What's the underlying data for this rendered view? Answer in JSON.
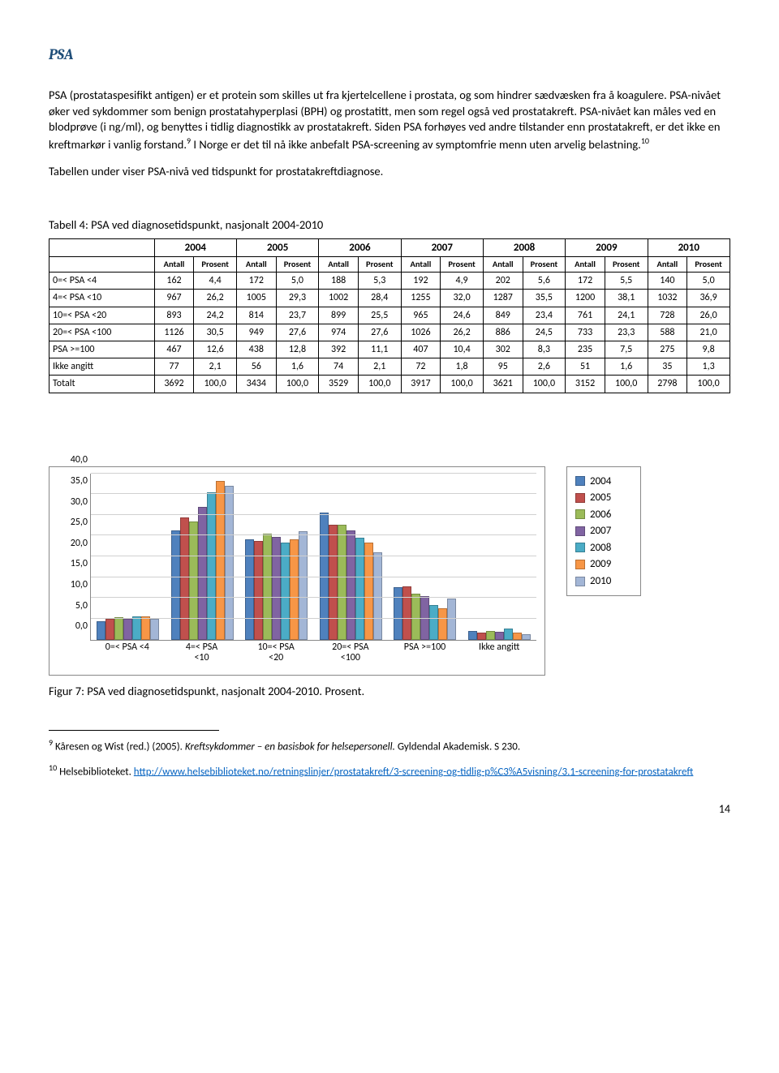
{
  "heading": "PSA",
  "para1": "PSA (prostataspesifikt antigen) er et protein som skilles ut fra kjertelcellene i prostata, og som hindrer sædvæsken fra å koagulere. PSA-nivået øker ved sykdommer som benign prostatahyperplasi (BPH) og prostatitt, men som regel også ved prostatakreft. PSA-nivået kan måles ved en blodprøve (i ng/ml), og benyttes i tidlig diagnostikk av prostatakreft. Siden PSA forhøyes ved andre tilstander enn prostatakreft, er det ikke en kreftmarkør i vanlig forstand.",
  "para1_ref9": "9",
  "para1_tail": " I Norge er det til nå ikke anbefalt PSA-screening av symptomfrie menn uten arvelig belastning.",
  "para1_ref10": "10",
  "para2": "Tabellen under viser PSA-nivå ved tidspunkt for prostatakreftdiagnose.",
  "table_title": "Tabell 4: PSA ved diagnosetidspunkt, nasjonalt 2004-2010",
  "years": [
    "2004",
    "2005",
    "2006",
    "2007",
    "2008",
    "2009",
    "2010"
  ],
  "subheads": [
    "Antall",
    "Prosent"
  ],
  "rows": [
    {
      "label": "0=< PSA <4",
      "cells": [
        "162",
        "4,4",
        "172",
        "5,0",
        "188",
        "5,3",
        "192",
        "4,9",
        "202",
        "5,6",
        "172",
        "5,5",
        "140",
        "5,0"
      ]
    },
    {
      "label": "4=< PSA <10",
      "cells": [
        "967",
        "26,2",
        "1005",
        "29,3",
        "1002",
        "28,4",
        "1255",
        "32,0",
        "1287",
        "35,5",
        "1200",
        "38,1",
        "1032",
        "36,9"
      ]
    },
    {
      "label": "10=< PSA <20",
      "cells": [
        "893",
        "24,2",
        "814",
        "23,7",
        "899",
        "25,5",
        "965",
        "24,6",
        "849",
        "23,4",
        "761",
        "24,1",
        "728",
        "26,0"
      ]
    },
    {
      "label": "20=< PSA <100",
      "cells": [
        "1126",
        "30,5",
        "949",
        "27,6",
        "974",
        "27,6",
        "1026",
        "26,2",
        "886",
        "24,5",
        "733",
        "23,3",
        "588",
        "21,0"
      ]
    },
    {
      "label": "PSA >=100",
      "cells": [
        "467",
        "12,6",
        "438",
        "12,8",
        "392",
        "11,1",
        "407",
        "10,4",
        "302",
        "8,3",
        "235",
        "7,5",
        "275",
        "9,8"
      ]
    },
    {
      "label": "Ikke angitt",
      "cells": [
        "77",
        "2,1",
        "56",
        "1,6",
        "74",
        "2,1",
        "72",
        "1,8",
        "95",
        "2,6",
        "51",
        "1,6",
        "35",
        "1,3"
      ]
    },
    {
      "label": "Totalt",
      "cells": [
        "3692",
        "100,0",
        "3434",
        "100,0",
        "3529",
        "100,0",
        "3917",
        "100,0",
        "3621",
        "100,0",
        "3152",
        "100,0",
        "2798",
        "100,0"
      ]
    }
  ],
  "chart": {
    "ymax": 40,
    "ytick_step": 5,
    "yticks": [
      "0,0",
      "5,0",
      "10,0",
      "15,0",
      "20,0",
      "25,0",
      "30,0",
      "35,0",
      "40,0"
    ],
    "categories": [
      "0=< PSA <4",
      "4=< PSA <10",
      "10=< PSA <20",
      "20=< PSA <100",
      "PSA >=100",
      "Ikke angitt"
    ],
    "x_display": [
      "0=< PSA <4",
      "4=< PSA\n<10",
      "10=< PSA\n<20",
      "20=< PSA\n<100",
      "PSA >=100",
      "Ikke angitt"
    ],
    "series": [
      {
        "name": "2004",
        "color": "#4f81bd",
        "values": [
          4.4,
          26.2,
          24.2,
          30.5,
          12.6,
          2.1
        ]
      },
      {
        "name": "2005",
        "color": "#c0504d",
        "values": [
          5.0,
          29.3,
          23.7,
          27.6,
          12.8,
          1.6
        ]
      },
      {
        "name": "2006",
        "color": "#9bbb59",
        "values": [
          5.3,
          28.4,
          25.5,
          27.6,
          11.1,
          2.1
        ]
      },
      {
        "name": "2007",
        "color": "#8064a2",
        "values": [
          4.9,
          32.0,
          24.6,
          26.2,
          10.4,
          1.8
        ]
      },
      {
        "name": "2008",
        "color": "#4bacc6",
        "values": [
          5.6,
          35.5,
          23.4,
          24.5,
          8.3,
          2.6
        ]
      },
      {
        "name": "2009",
        "color": "#f79646",
        "values": [
          5.5,
          38.1,
          24.1,
          23.3,
          7.5,
          1.6
        ]
      },
      {
        "name": "2010",
        "color": "#a3b6d6",
        "values": [
          5.0,
          36.9,
          26.0,
          21.0,
          9.8,
          1.3
        ]
      }
    ],
    "background": "#ffffff",
    "grid_color": "#d0d0d0"
  },
  "fig_caption": "Figur 7: PSA ved diagnosetidspunkt, nasjonalt 2004-2010. Prosent.",
  "footnote9_pre": " Kåresen og Wist (red.) (2005). ",
  "footnote9_ital": "Kreftsykdommer – en basisbok for helsepersonell.",
  "footnote9_post": " Gyldendal Akademisk. S 230.",
  "footnote10_pre": " Helsebiblioteket. ",
  "footnote10_link": "http://www.helsebiblioteket.no/retningslinjer/prostatakreft/3-screening-og-tidlig-p%C3%A5visning/3.1-screening-for-prostatakreft",
  "pagenum": "14"
}
